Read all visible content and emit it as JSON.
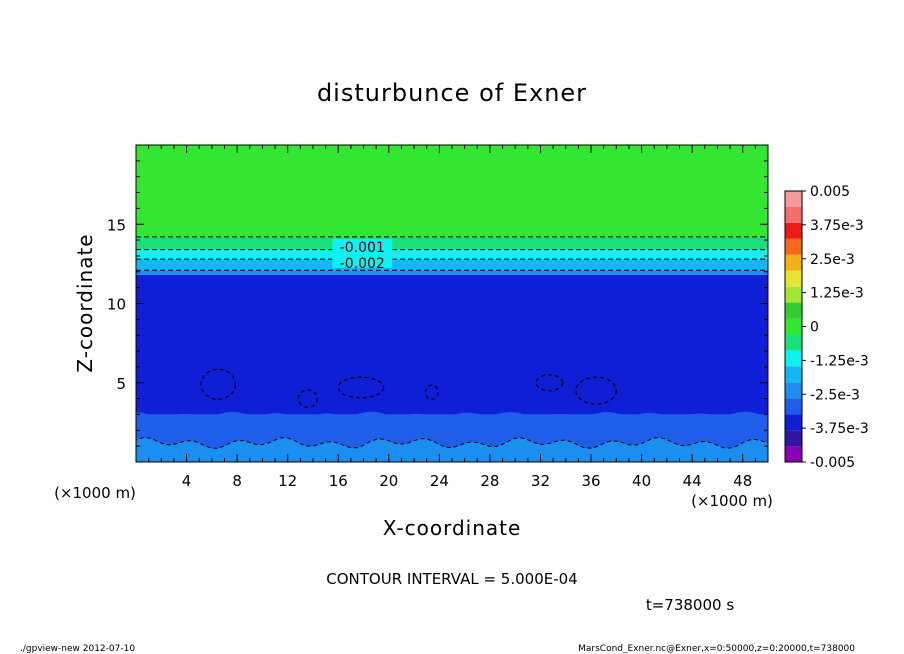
{
  "footer": {
    "left": "./gpview-new   2012-07-10",
    "right": "MarsCond_Exner.nc@Exner,x=0:50000,z=0:20000,t=738000"
  },
  "colors": {
    "level_colors": [
      "#8b00b4",
      "#3216a3",
      "#0e1fd6",
      "#1f5ee8",
      "#1a8ff0",
      "#13b7f3",
      "#0ff0f0",
      "#1ae07a",
      "#32e632",
      "#33cc33",
      "#a0e632",
      "#e6e632",
      "#f5b01a",
      "#f56a1a",
      "#ee1a1a",
      "#f56d6d",
      "#f59a9a"
    ]
  },
  "chart_data": {
    "type": "contour",
    "title": "disturbunce of Exner",
    "xlabel": "X-coordinate",
    "ylabel": "Z-coordinate",
    "x_unit": "(×1000 m)",
    "y_unit": "(×1000 m)",
    "xlim": [
      0,
      50
    ],
    "ylim": [
      0,
      20
    ],
    "x_ticks": [
      4,
      8,
      12,
      16,
      20,
      24,
      28,
      32,
      36,
      40,
      44,
      48
    ],
    "y_ticks": [
      5,
      10,
      15
    ],
    "contour_interval_text": "CONTOUR INTERVAL = 5.000E-04",
    "time_text": "t=738000 s",
    "contour_labels": [
      {
        "text": "-0.001",
        "x": 17.9,
        "z": 13.5
      },
      {
        "text": "-0.002",
        "x": 17.9,
        "z": 12.5
      }
    ],
    "colorbar": {
      "labels": [
        "0.005",
        "3.75e-3",
        "2.5e-3",
        "1.25e-3",
        "0",
        "-1.25e-3",
        "-2.5e-3",
        "-3.75e-3",
        "-0.005"
      ],
      "min": -0.005,
      "max": 0.005
    },
    "bands": [
      {
        "z_from": 14.2,
        "z_to": 20,
        "value": 0.0
      },
      {
        "z_from": 13.4,
        "z_to": 14.2,
        "value": -0.00075
      },
      {
        "z_from": 12.8,
        "z_to": 13.4,
        "value": -0.00125
      },
      {
        "z_from": 12.1,
        "z_to": 12.8,
        "value": -0.00175
      },
      {
        "z_from": 11.8,
        "z_to": 12.1,
        "value": -0.00225
      },
      {
        "z_from": 3.0,
        "z_to": 11.8,
        "value": -0.00325
      },
      {
        "z_from": 1.2,
        "z_to": 3.0,
        "value": -0.00275
      },
      {
        "z_from": 0,
        "z_to": 1.2,
        "value": -0.00225
      }
    ],
    "cells": [
      {
        "x": 6.5,
        "z": 4.9,
        "rx": 1.35,
        "rz": 0.95
      },
      {
        "x": 13.6,
        "z": 4.0,
        "rx": 0.75,
        "rz": 0.55
      },
      {
        "x": 17.8,
        "z": 4.7,
        "rx": 1.8,
        "rz": 0.65
      },
      {
        "x": 23.4,
        "z": 4.4,
        "rx": 0.5,
        "rz": 0.45
      },
      {
        "x": 32.7,
        "z": 5.0,
        "rx": 1.05,
        "rz": 0.5
      },
      {
        "x": 36.4,
        "z": 4.5,
        "rx": 1.6,
        "rz": 0.85
      }
    ]
  }
}
